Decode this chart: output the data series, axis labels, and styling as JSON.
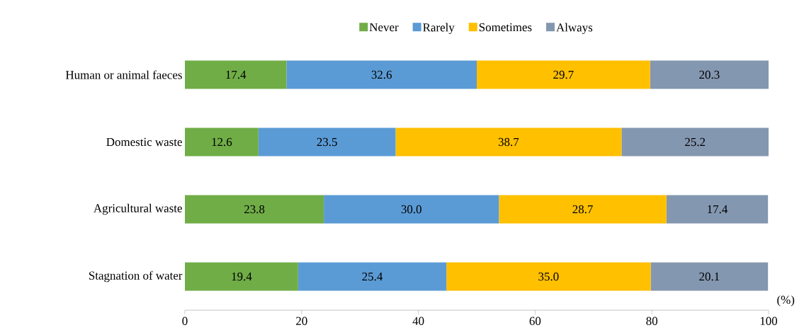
{
  "chart_data": {
    "type": "bar",
    "orientation": "horizontal",
    "stacked": true,
    "xlabel": "(%)",
    "categories": [
      "Human or animal faeces",
      "Domestic waste",
      "Agricultural waste",
      "Stagnation of water"
    ],
    "series": [
      {
        "name": "Never",
        "color": "#70ad47",
        "values": [
          17.4,
          12.6,
          23.8,
          19.4
        ],
        "value_labels": [
          "17.4",
          "12.6",
          "23.8",
          "19.4"
        ]
      },
      {
        "name": "Rarely",
        "color": "#5b9bd5",
        "values": [
          32.6,
          23.5,
          30.0,
          25.4
        ],
        "value_labels": [
          "32.6",
          "23.5",
          "30.0",
          "25.4"
        ]
      },
      {
        "name": "Sometimes",
        "color": "#ffc000",
        "values": [
          29.7,
          38.7,
          28.7,
          35.0
        ],
        "value_labels": [
          "29.7",
          "38.7",
          "28.7",
          "35.0"
        ]
      },
      {
        "name": "Always",
        "color": "#8497b0",
        "values": [
          20.3,
          25.2,
          17.4,
          20.1
        ],
        "value_labels": [
          "20.3",
          "25.2",
          "17.4",
          "20.1"
        ]
      }
    ],
    "xlim": [
      0,
      100
    ],
    "xticks": [
      0,
      20,
      40,
      60,
      80,
      100
    ],
    "legend": "top",
    "grid": false
  }
}
